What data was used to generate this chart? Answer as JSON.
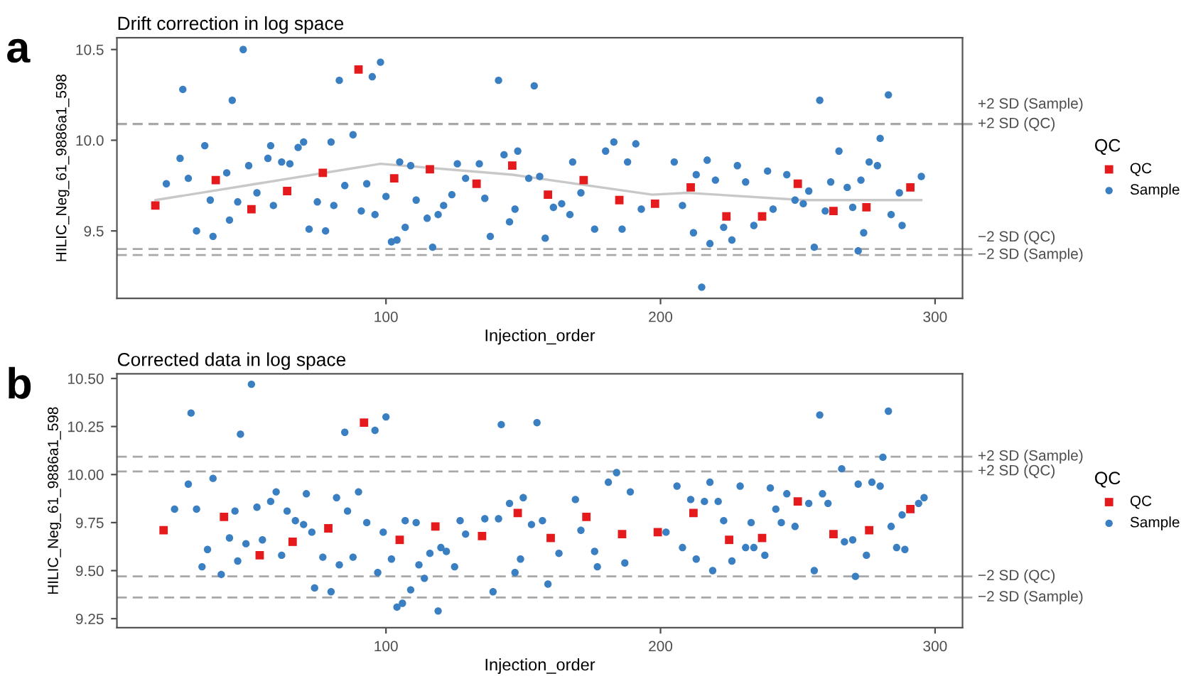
{
  "chart_data": [
    {
      "type": "scatter",
      "title": "Drift correction in log space",
      "xlabel": "Injection_order",
      "ylabel": "HILIC_Neg_61_9886a1_598",
      "legend_title": "QC",
      "legend": "right",
      "grid": false,
      "annotations": [
        "a"
      ],
      "xlim": [
        2,
        310
      ],
      "xticks": [
        100,
        200,
        300
      ],
      "ylim": [
        9.128,
        10.565
      ],
      "yticks": [
        9.5,
        {
          "value": 10.0,
          "label": "10.0"
        },
        10.5
      ],
      "series": [
        {
          "name": "QC",
          "marker": "square",
          "color": "#e41a1c",
          "x": [
            16,
            38,
            51,
            64,
            77,
            90,
            103,
            116,
            133,
            146,
            159,
            172,
            185,
            198,
            211,
            224,
            237,
            250,
            263,
            275,
            291
          ],
          "values": [
            9.64,
            9.78,
            9.62,
            9.72,
            9.82,
            10.39,
            9.79,
            9.84,
            9.76,
            9.86,
            9.7,
            9.78,
            9.67,
            9.65,
            9.74,
            9.58,
            9.58,
            9.76,
            9.61,
            9.63,
            9.74
          ]
        },
        {
          "name": "Sample",
          "marker": "circle",
          "color": "#3a7fc1",
          "x": [
            20,
            25,
            26,
            28,
            31,
            34,
            37,
            36,
            42,
            43,
            44,
            46,
            48,
            50,
            53,
            57,
            58,
            59,
            62,
            65,
            68,
            70,
            72,
            75,
            78,
            80,
            81,
            83,
            85,
            88,
            91,
            93,
            95,
            96,
            98,
            100,
            102,
            104,
            105,
            107,
            109,
            111,
            115,
            117,
            119,
            121,
            124,
            126,
            129,
            134,
            136,
            138,
            141,
            143,
            145,
            147,
            148,
            152,
            154,
            156,
            158,
            161,
            164,
            167,
            168,
            171,
            176,
            180,
            183,
            186,
            188,
            191,
            193,
            205,
            208,
            212,
            213,
            215,
            217,
            218,
            220,
            223,
            226,
            228,
            231,
            234,
            239,
            241,
            246,
            249,
            252,
            254,
            256,
            258,
            260,
            262,
            265,
            268,
            270,
            272,
            273,
            274,
            276,
            279,
            280,
            283,
            284,
            287,
            288,
            295
          ],
          "values": [
            9.76,
            9.9,
            10.28,
            9.79,
            9.5,
            9.97,
            9.47,
            9.67,
            9.82,
            9.56,
            10.22,
            9.66,
            10.5,
            9.86,
            9.71,
            9.9,
            9.97,
            9.64,
            9.88,
            9.87,
            9.96,
            9.99,
            9.51,
            9.66,
            9.5,
            9.99,
            9.64,
            10.33,
            9.75,
            10.03,
            9.61,
            9.76,
            10.35,
            9.59,
            10.43,
            9.69,
            9.44,
            9.45,
            9.88,
            9.52,
            9.86,
            9.67,
            9.57,
            9.41,
            9.59,
            9.64,
            9.7,
            9.87,
            9.79,
            9.87,
            9.68,
            9.47,
            10.33,
            9.92,
            9.55,
            9.62,
            9.94,
            9.79,
            10.3,
            9.8,
            9.46,
            9.63,
            9.65,
            9.59,
            9.88,
            9.71,
            9.51,
            9.94,
            9.99,
            9.51,
            9.88,
            9.98,
            9.62,
            9.88,
            9.64,
            9.49,
            9.81,
            9.19,
            9.89,
            9.43,
            9.78,
            9.52,
            9.45,
            9.86,
            9.77,
            9.53,
            9.83,
            9.62,
            9.81,
            9.67,
            9.65,
            9.72,
            9.41,
            10.22,
            9.61,
            9.77,
            9.94,
            9.74,
            9.63,
            9.39,
            9.78,
            9.49,
            9.88,
            9.86,
            10.01,
            10.25,
            9.59,
            9.71,
            9.53,
            9.8
          ]
        },
        {
          "type": "line",
          "color": "#c8c8c8",
          "x": [
            16,
            53,
            98,
            146,
            197,
            210,
            252,
            295
          ],
          "values": [
            9.67,
            9.76,
            9.87,
            9.81,
            9.7,
            9.71,
            9.67,
            9.67
          ]
        }
      ],
      "ref_lines": [
        {
          "axis": "y",
          "value": 10.09,
          "label": "+2 SD (Sample)",
          "color": "#a8a8a8",
          "line_style": "dashed"
        },
        {
          "axis": "y",
          "value": 10.088,
          "label": "+2 SD (QC)",
          "color": "#a8a8a8",
          "line_style": "dashed"
        },
        {
          "axis": "y",
          "value": 9.4,
          "label": "−2 SD (QC)",
          "color": "#a8a8a8",
          "line_style": "dashed"
        },
        {
          "axis": "y",
          "value": 9.367,
          "label": "−2 SD (Sample)",
          "color": "#a8a8a8",
          "line_style": "dashed"
        }
      ]
    },
    {
      "type": "scatter",
      "title": "Corrected data in log space",
      "xlabel": "Injection_order",
      "ylabel": "HILIC_Neg_61_9886a1_598",
      "legend_title": "QC",
      "legend": "right",
      "grid": false,
      "annotations": [
        "b"
      ],
      "xlim": [
        2,
        310
      ],
      "xticks": [
        100,
        200,
        300
      ],
      "ylim": [
        9.203,
        10.524
      ],
      "yticks": [
        9.25,
        {
          "value": 9.5,
          "label": "9.50"
        },
        9.75,
        {
          "value": 10.0,
          "label": "10.00"
        },
        10.25,
        {
          "value": 10.5,
          "label": "10.50"
        }
      ],
      "series": [
        {
          "name": "QC",
          "marker": "square",
          "color": "#e41a1c",
          "x": [
            19,
            41,
            54,
            66,
            79,
            92,
            105,
            118,
            135,
            148,
            160,
            173,
            186,
            199,
            212,
            225,
            237,
            250,
            263,
            276,
            291
          ],
          "values": [
            9.71,
            9.78,
            9.58,
            9.65,
            9.72,
            10.27,
            9.66,
            9.73,
            9.68,
            9.8,
            9.67,
            9.78,
            9.69,
            9.7,
            9.8,
            9.66,
            9.67,
            9.86,
            9.69,
            9.71,
            9.82
          ]
        },
        {
          "name": "Sample",
          "marker": "circle",
          "color": "#3a7fc1",
          "x": [
            23,
            28,
            29,
            31,
            33,
            35,
            37,
            40,
            43,
            45,
            46,
            47,
            49,
            51,
            53,
            55,
            58,
            60,
            62,
            64,
            67,
            70,
            71,
            73,
            74,
            77,
            80,
            82,
            83,
            85,
            86,
            88,
            90,
            93,
            96,
            97,
            99,
            100,
            102,
            104,
            106,
            107,
            109,
            111,
            112,
            114,
            116,
            119,
            120,
            122,
            125,
            127,
            129,
            136,
            139,
            141,
            142,
            145,
            147,
            149,
            150,
            153,
            155,
            157,
            159,
            163,
            169,
            171,
            176,
            177,
            181,
            184,
            187,
            189,
            202,
            206,
            208,
            211,
            213,
            216,
            218,
            219,
            221,
            223,
            226,
            229,
            231,
            233,
            234,
            238,
            240,
            242,
            244,
            246,
            249,
            254,
            256,
            258,
            259,
            261,
            266,
            267,
            270,
            271,
            272,
            275,
            277,
            280,
            281,
            283,
            284,
            286,
            288,
            289,
            294,
            296
          ],
          "values": [
            9.82,
            9.95,
            10.32,
            9.82,
            9.52,
            9.61,
            9.98,
            9.48,
            9.67,
            9.81,
            9.55,
            10.21,
            9.64,
            10.47,
            9.83,
            9.66,
            9.86,
            9.91,
            9.58,
            9.81,
            9.76,
            9.74,
            9.9,
            9.7,
            9.41,
            9.57,
            9.39,
            9.88,
            9.53,
            10.22,
            9.81,
            9.57,
            9.91,
            9.75,
            10.23,
            9.49,
            9.7,
            10.3,
            9.56,
            9.31,
            9.33,
            9.76,
            9.4,
            9.75,
            9.53,
            9.46,
            9.59,
            9.29,
            9.62,
            9.6,
            9.52,
            9.76,
            9.69,
            9.77,
            9.39,
            9.77,
            10.26,
            9.85,
            9.49,
            9.56,
            9.88,
            9.74,
            10.27,
            9.76,
            9.43,
            9.59,
            9.87,
            9.71,
            9.6,
            9.52,
            9.96,
            10.01,
            9.54,
            9.91,
            9.7,
            9.94,
            9.62,
            9.87,
            9.56,
            9.86,
            9.96,
            9.5,
            9.86,
            9.76,
            9.55,
            9.94,
            9.62,
            9.75,
            9.62,
            9.58,
            9.93,
            9.82,
            9.75,
            9.9,
            9.73,
            9.85,
            9.5,
            10.31,
            9.9,
            9.85,
            10.03,
            9.65,
            9.66,
            9.47,
            9.95,
            9.58,
            9.96,
            9.94,
            10.09,
            10.33,
            9.73,
            9.62,
            9.79,
            9.61,
            9.85,
            9.88
          ]
        }
      ],
      "ref_lines": [
        {
          "axis": "y",
          "value": 10.093,
          "label": "+2 SD (Sample)",
          "color": "#a8a8a8",
          "line_style": "dashed"
        },
        {
          "axis": "y",
          "value": 10.016,
          "label": "+2 SD (QC)",
          "color": "#a8a8a8",
          "line_style": "dashed"
        },
        {
          "axis": "y",
          "value": 9.47,
          "label": "−2 SD (QC)",
          "color": "#a8a8a8",
          "line_style": "dashed"
        },
        {
          "axis": "y",
          "value": 9.36,
          "label": "−2 SD (Sample)",
          "color": "#a8a8a8",
          "line_style": "dashed"
        }
      ]
    }
  ]
}
